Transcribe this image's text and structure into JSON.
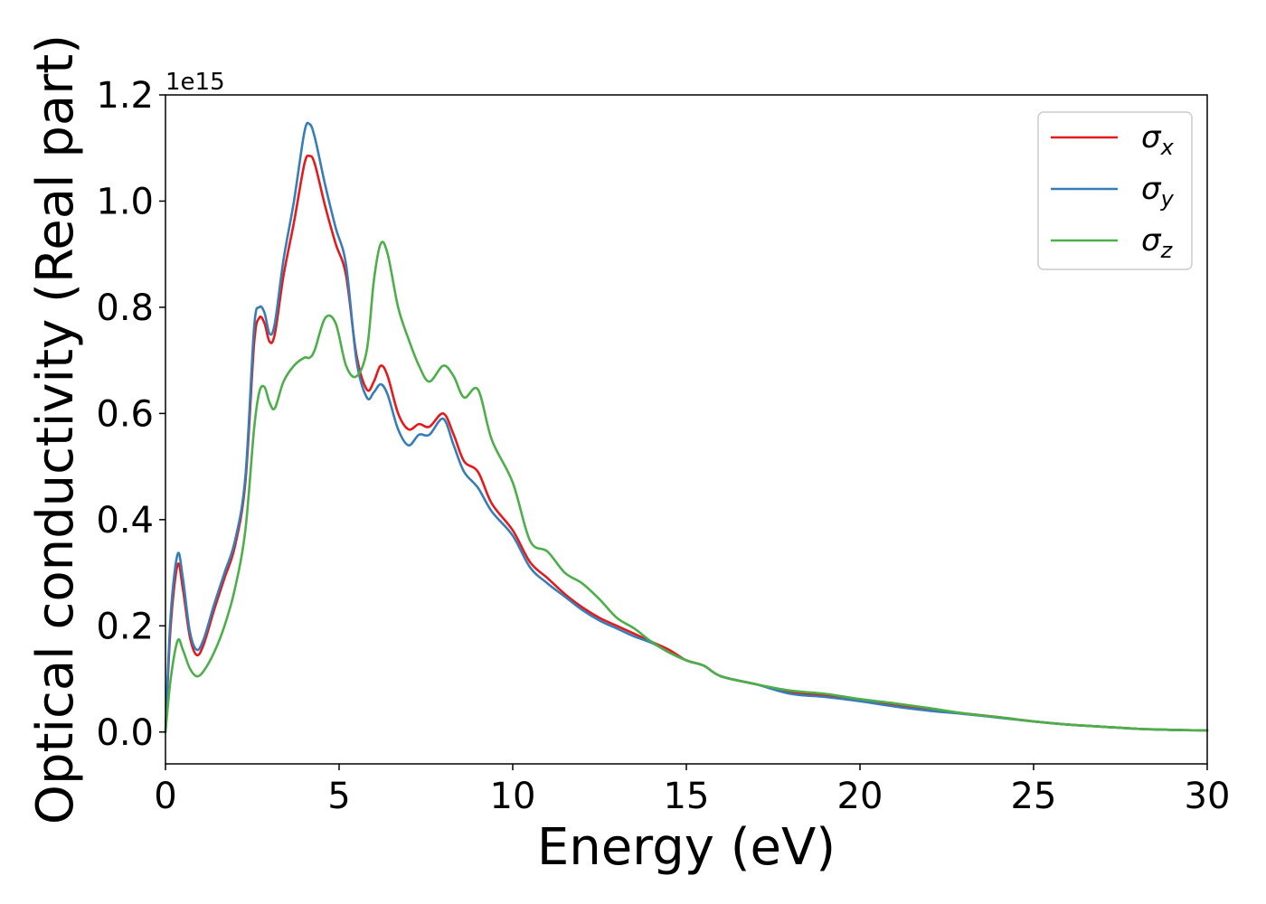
{
  "chart_data": {
    "type": "line",
    "title": "",
    "xlabel": "Energy (eV)",
    "ylabel": "Optical conductivity (Real part)",
    "y_offset_label": "1e15",
    "xlim": [
      0,
      30
    ],
    "ylim": [
      -0.06,
      1.2
    ],
    "x_ticks": [
      0,
      5,
      10,
      15,
      20,
      25,
      30
    ],
    "x_tick_labels": [
      "0",
      "5",
      "10",
      "15",
      "20",
      "25",
      "30"
    ],
    "y_ticks": [
      0.0,
      0.2,
      0.4,
      0.6,
      0.8,
      1.0,
      1.2
    ],
    "y_tick_labels": [
      "0.0",
      "0.2",
      "0.4",
      "0.6",
      "0.8",
      "1.0",
      "1.2"
    ],
    "grid": false,
    "legend_position": "top-right",
    "series": [
      {
        "name": "σx",
        "symbol": "σ",
        "subscript": "x",
        "color": "#e41a1c",
        "x": [
          0,
          0.15,
          0.35,
          0.5,
          0.7,
          0.9,
          1.1,
          1.4,
          1.7,
          2.0,
          2.3,
          2.55,
          2.7,
          2.85,
          3.0,
          3.15,
          3.4,
          3.7,
          4.0,
          4.15,
          4.3,
          4.6,
          4.9,
          5.2,
          5.5,
          5.8,
          6.0,
          6.2,
          6.4,
          6.7,
          7.0,
          7.3,
          7.6,
          8.0,
          8.3,
          8.6,
          9.0,
          9.4,
          10.0,
          10.5,
          11.0,
          11.5,
          12.0,
          12.5,
          13.0,
          13.5,
          14.0,
          14.5,
          15.0,
          15.5,
          16.0,
          17.0,
          18.0,
          19.0,
          20.0,
          21.0,
          22.0,
          23.0,
          24.0,
          25.0,
          26.0,
          27.0,
          28.0,
          29.0,
          30.0
        ],
        "y": [
          0.0,
          0.2,
          0.315,
          0.27,
          0.18,
          0.145,
          0.165,
          0.23,
          0.29,
          0.35,
          0.47,
          0.73,
          0.78,
          0.77,
          0.735,
          0.75,
          0.86,
          0.96,
          1.07,
          1.085,
          1.07,
          0.99,
          0.92,
          0.86,
          0.71,
          0.645,
          0.66,
          0.69,
          0.67,
          0.6,
          0.57,
          0.58,
          0.575,
          0.6,
          0.56,
          0.51,
          0.49,
          0.43,
          0.38,
          0.32,
          0.29,
          0.26,
          0.235,
          0.215,
          0.2,
          0.185,
          0.17,
          0.155,
          0.135,
          0.125,
          0.105,
          0.09,
          0.075,
          0.068,
          0.06,
          0.05,
          0.042,
          0.035,
          0.028,
          0.02,
          0.014,
          0.01,
          0.006,
          0.004,
          0.003
        ]
      },
      {
        "name": "σy",
        "symbol": "σ",
        "subscript": "y",
        "color": "#377eb8",
        "x": [
          0,
          0.15,
          0.35,
          0.5,
          0.7,
          0.9,
          1.1,
          1.4,
          1.7,
          2.0,
          2.3,
          2.55,
          2.7,
          2.85,
          3.0,
          3.15,
          3.4,
          3.7,
          4.0,
          4.15,
          4.3,
          4.6,
          4.9,
          5.2,
          5.5,
          5.8,
          6.0,
          6.2,
          6.4,
          6.7,
          7.0,
          7.3,
          7.6,
          8.0,
          8.3,
          8.6,
          9.0,
          9.4,
          10.0,
          10.5,
          11.0,
          11.5,
          12.0,
          12.5,
          13.0,
          13.5,
          14.0,
          14.5,
          15.0,
          15.5,
          16.0,
          17.0,
          18.0,
          19.0,
          20.0,
          21.0,
          22.0,
          23.0,
          24.0,
          25.0,
          26.0,
          27.0,
          28.0,
          29.0,
          30.0
        ],
        "y": [
          0.0,
          0.22,
          0.335,
          0.29,
          0.19,
          0.155,
          0.175,
          0.24,
          0.3,
          0.36,
          0.48,
          0.76,
          0.8,
          0.79,
          0.75,
          0.77,
          0.89,
          1.0,
          1.13,
          1.145,
          1.12,
          1.03,
          0.95,
          0.88,
          0.7,
          0.63,
          0.64,
          0.655,
          0.635,
          0.57,
          0.54,
          0.56,
          0.56,
          0.59,
          0.54,
          0.49,
          0.46,
          0.415,
          0.37,
          0.31,
          0.28,
          0.255,
          0.23,
          0.21,
          0.195,
          0.18,
          0.168,
          0.15,
          0.135,
          0.125,
          0.105,
          0.09,
          0.072,
          0.066,
          0.058,
          0.048,
          0.04,
          0.034,
          0.027,
          0.02,
          0.014,
          0.01,
          0.006,
          0.004,
          0.003
        ]
      },
      {
        "name": "σz",
        "symbol": "σ",
        "subscript": "z",
        "color": "#4daf4a",
        "x": [
          0,
          0.15,
          0.35,
          0.5,
          0.7,
          0.9,
          1.1,
          1.4,
          1.7,
          2.0,
          2.3,
          2.55,
          2.7,
          2.85,
          3.0,
          3.15,
          3.4,
          3.7,
          4.0,
          4.15,
          4.3,
          4.6,
          4.9,
          5.2,
          5.5,
          5.8,
          6.0,
          6.2,
          6.4,
          6.7,
          7.0,
          7.3,
          7.6,
          8.0,
          8.3,
          8.6,
          9.0,
          9.4,
          10.0,
          10.5,
          11.0,
          11.5,
          12.0,
          12.5,
          13.0,
          13.5,
          14.0,
          14.5,
          15.0,
          15.5,
          16.0,
          17.0,
          18.0,
          19.0,
          20.0,
          21.0,
          22.0,
          23.0,
          24.0,
          25.0,
          26.0,
          27.0,
          28.0,
          29.0,
          30.0
        ],
        "y": [
          0.0,
          0.1,
          0.172,
          0.155,
          0.12,
          0.105,
          0.115,
          0.15,
          0.2,
          0.27,
          0.38,
          0.57,
          0.64,
          0.65,
          0.62,
          0.61,
          0.66,
          0.69,
          0.705,
          0.705,
          0.72,
          0.78,
          0.77,
          0.69,
          0.67,
          0.72,
          0.85,
          0.92,
          0.9,
          0.8,
          0.74,
          0.69,
          0.66,
          0.69,
          0.67,
          0.63,
          0.645,
          0.55,
          0.47,
          0.36,
          0.34,
          0.3,
          0.28,
          0.25,
          0.215,
          0.195,
          0.17,
          0.15,
          0.135,
          0.125,
          0.105,
          0.09,
          0.078,
          0.072,
          0.062,
          0.054,
          0.045,
          0.035,
          0.028,
          0.02,
          0.014,
          0.01,
          0.006,
          0.004,
          0.003
        ]
      }
    ]
  }
}
